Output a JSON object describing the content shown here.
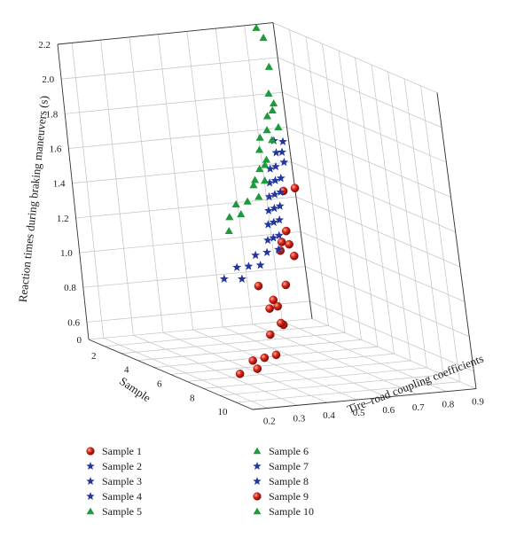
{
  "colors": {
    "red": "#cc1a14",
    "blue": "#23369c",
    "green": "#1e9a3c",
    "grid": "#c9c9c9",
    "axis": "#333333"
  },
  "chart_data": {
    "type": "scatter",
    "is_3d": true,
    "title": "",
    "zlabel": "Reaction times during braking maneuvers (s)",
    "xlabel": "Sample",
    "ylabel": "Tire–road coupling coefficients",
    "x_ticks": [
      "2",
      "4",
      "6",
      "8",
      "10"
    ],
    "y_ticks": [
      "0.2",
      "0.3",
      "0.4",
      "0.5",
      "0.6",
      "0.7",
      "0.8",
      "0.9"
    ],
    "z_ticks": [
      "0",
      "0.6",
      "0.8",
      "1.0",
      "1.2",
      "1.4",
      "1.6",
      "1.8",
      "2.0",
      "2.2"
    ],
    "zlim": [
      0.5,
      2.2
    ],
    "legend_position": "bottom",
    "legend": [
      {
        "label": "Sample 1",
        "marker": "sphere",
        "color": "red"
      },
      {
        "label": "Sample 2",
        "marker": "star",
        "color": "blue"
      },
      {
        "label": "Sample 3",
        "marker": "star",
        "color": "blue"
      },
      {
        "label": "Sample 4",
        "marker": "star",
        "color": "blue"
      },
      {
        "label": "Sample 5",
        "marker": "triangle",
        "color": "green"
      },
      {
        "label": "Sample 6",
        "marker": "triangle",
        "color": "green"
      },
      {
        "label": "Sample 7",
        "marker": "star",
        "color": "blue"
      },
      {
        "label": "Sample 8",
        "marker": "star",
        "color": "blue"
      },
      {
        "label": "Sample 9",
        "marker": "sphere",
        "color": "red"
      },
      {
        "label": "Sample 10",
        "marker": "triangle",
        "color": "green"
      }
    ],
    "groups": [
      {
        "marker": "sphere",
        "color": "red",
        "points": [
          [
            1,
            0.9,
            1.25
          ],
          [
            1,
            0.86,
            1.24
          ],
          [
            2,
            0.8,
            1.06
          ],
          [
            2,
            0.78,
            1.0
          ],
          [
            3,
            0.72,
            1.0
          ],
          [
            4,
            0.7,
            1.08
          ],
          [
            5,
            0.66,
            1.06
          ],
          [
            5,
            0.62,
            0.9
          ],
          [
            4,
            0.58,
            0.86
          ],
          [
            6,
            0.52,
            0.87
          ],
          [
            7,
            0.48,
            0.88
          ],
          [
            8,
            0.44,
            0.82
          ],
          [
            8,
            0.4,
            0.92
          ],
          [
            9,
            0.38,
            0.88
          ],
          [
            9,
            0.34,
            0.82
          ],
          [
            10,
            0.3,
            0.75
          ],
          [
            10,
            0.26,
            0.74
          ],
          [
            10,
            0.22,
            0.73
          ],
          [
            11,
            0.18,
            0.73
          ],
          [
            11,
            0.12,
            0.71
          ]
        ]
      },
      {
        "marker": "star",
        "color": "blue",
        "points": [
          [
            1,
            0.88,
            1.52
          ],
          [
            1,
            0.85,
            1.53
          ],
          [
            2,
            0.82,
            1.51
          ],
          [
            2,
            0.8,
            1.51
          ],
          [
            3,
            0.77,
            1.5
          ],
          [
            3,
            0.74,
            1.48
          ],
          [
            3,
            0.72,
            1.47
          ],
          [
            4,
            0.7,
            1.46
          ],
          [
            4,
            0.68,
            1.45
          ],
          [
            4,
            0.66,
            1.44
          ],
          [
            5,
            0.64,
            1.43
          ],
          [
            5,
            0.62,
            1.42
          ],
          [
            5,
            0.6,
            1.41
          ],
          [
            6,
            0.58,
            1.4
          ],
          [
            6,
            0.56,
            1.39
          ],
          [
            6,
            0.54,
            1.38
          ],
          [
            7,
            0.52,
            1.37
          ],
          [
            7,
            0.5,
            1.36
          ],
          [
            7,
            0.48,
            1.35
          ],
          [
            8,
            0.46,
            1.33
          ],
          [
            8,
            0.44,
            1.32
          ],
          [
            8,
            0.42,
            1.31
          ],
          [
            9,
            0.4,
            1.3
          ],
          [
            9,
            0.36,
            1.29
          ],
          [
            9,
            0.32,
            1.28
          ],
          [
            10,
            0.28,
            1.27
          ],
          [
            10,
            0.24,
            1.27
          ],
          [
            10,
            0.2,
            1.27
          ],
          [
            11,
            0.16,
            1.25
          ],
          [
            11,
            0.1,
            1.26
          ]
        ]
      },
      {
        "marker": "triangle",
        "color": "green",
        "points": [
          [
            1,
            0.86,
            2.12
          ],
          [
            1,
            0.84,
            2.18
          ],
          [
            3,
            0.76,
            2.05
          ],
          [
            2,
            0.8,
            1.85
          ],
          [
            3,
            0.76,
            1.84
          ],
          [
            4,
            0.7,
            1.85
          ],
          [
            4,
            0.68,
            1.82
          ],
          [
            5,
            0.66,
            1.8
          ],
          [
            5,
            0.62,
            1.79
          ],
          [
            6,
            0.58,
            1.78
          ],
          [
            6,
            0.54,
            1.8
          ],
          [
            7,
            0.5,
            1.72
          ],
          [
            7,
            0.48,
            1.78
          ],
          [
            8,
            0.44,
            1.74
          ],
          [
            8,
            0.42,
            1.72
          ],
          [
            8,
            0.4,
            1.66
          ],
          [
            9,
            0.38,
            1.7
          ],
          [
            9,
            0.34,
            1.68
          ],
          [
            10,
            0.3,
            1.66
          ],
          [
            10,
            0.26,
            1.64
          ],
          [
            10,
            0.22,
            1.63
          ],
          [
            11,
            0.18,
            1.62
          ],
          [
            11,
            0.14,
            1.61
          ],
          [
            12,
            0.08,
            1.58
          ]
        ]
      }
    ]
  }
}
